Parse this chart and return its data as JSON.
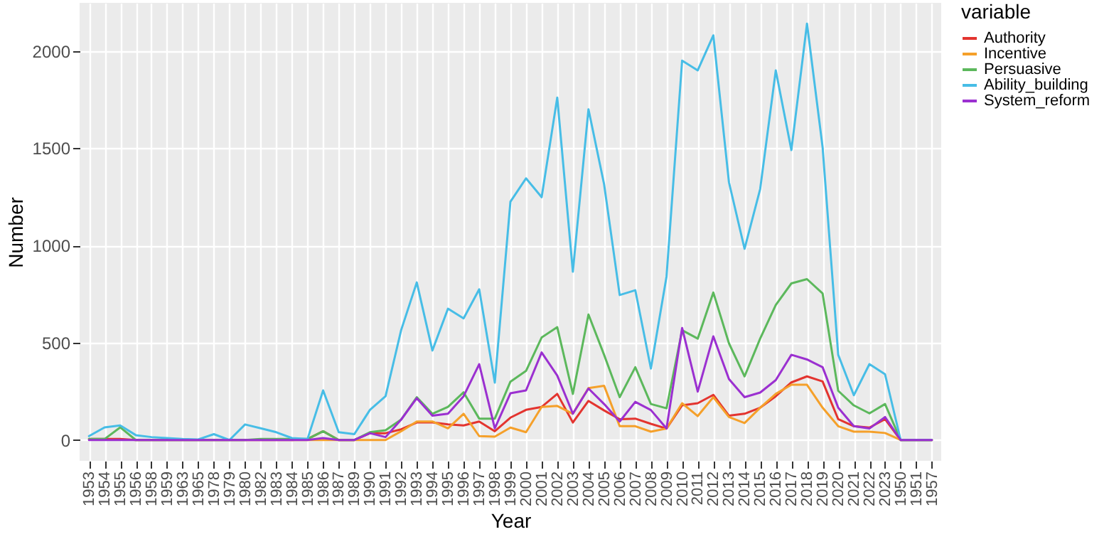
{
  "chart_data": {
    "type": "line",
    "xlabel": "Year",
    "ylabel": "Number",
    "legend_title": "variable",
    "legend": "right",
    "grid": true,
    "categories": [
      "1953",
      "1954",
      "1955",
      "1956",
      "1958",
      "1959",
      "1963",
      "1965",
      "1978",
      "1979",
      "1980",
      "1982",
      "1983",
      "1984",
      "1985",
      "1986",
      "1987",
      "1989",
      "1990",
      "1991",
      "1992",
      "1993",
      "1994",
      "1995",
      "1996",
      "1997",
      "1998",
      "1999",
      "2000",
      "2001",
      "2002",
      "2003",
      "2004",
      "2005",
      "2006",
      "2007",
      "2008",
      "2009",
      "2010",
      "2011",
      "2012",
      "2013",
      "2014",
      "2015",
      "2016",
      "2017",
      "2018",
      "2019",
      "2020",
      "2021",
      "2022",
      "2023",
      "1950",
      "1951",
      "1957"
    ],
    "ylim": [
      -107,
      2247
    ],
    "yticks": [
      0,
      500,
      1000,
      1500,
      2000
    ],
    "series": [
      {
        "name": "Authority",
        "color": "#e3342f",
        "values": [
          5,
          5,
          5,
          0,
          0,
          0,
          0,
          0,
          0,
          0,
          0,
          0,
          0,
          0,
          5,
          45,
          0,
          0,
          35,
          35,
          55,
          90,
          90,
          80,
          75,
          95,
          45,
          115,
          155,
          170,
          237,
          90,
          201,
          152,
          107,
          110,
          83,
          59,
          178,
          189,
          232,
          125,
          135,
          166,
          225,
          296,
          327,
          301,
          107,
          71,
          64,
          107,
          0,
          0,
          0
        ]
      },
      {
        "name": "Incentive",
        "color": "#f5a02a",
        "values": [
          null,
          null,
          null,
          null,
          null,
          null,
          null,
          null,
          null,
          null,
          null,
          null,
          null,
          0,
          0,
          0,
          0,
          0,
          0,
          0,
          45,
          95,
          95,
          60,
          135,
          20,
          17,
          64,
          40,
          170,
          175,
          135,
          267,
          279,
          71,
          71,
          43,
          59,
          189,
          123,
          220,
          118,
          87,
          166,
          237,
          284,
          284,
          166,
          71,
          43,
          43,
          36,
          0,
          0,
          0
        ]
      },
      {
        "name": "Persuasive",
        "color": "#5cb85c",
        "values": [
          5,
          5,
          65,
          0,
          0,
          0,
          0,
          0,
          0,
          0,
          0,
          5,
          5,
          5,
          5,
          45,
          0,
          0,
          40,
          50,
          105,
          220,
          135,
          170,
          245,
          110,
          110,
          300,
          355,
          527,
          580,
          237,
          645,
          438,
          220,
          374,
          185,
          163,
          564,
          521,
          758,
          497,
          327,
          521,
          694,
          805,
          827,
          753,
          253,
          178,
          137,
          185,
          0,
          0,
          0
        ]
      },
      {
        "name": "Ability_building",
        "color": "#47bde6",
        "values": [
          20,
          65,
          75,
          25,
          15,
          10,
          5,
          3,
          30,
          0,
          80,
          60,
          40,
          10,
          5,
          255,
          40,
          30,
          155,
          225,
          565,
          810,
          460,
          675,
          625,
          775,
          295,
          1225,
          1345,
          1248,
          1760,
          865,
          1700,
          1315,
          745,
          770,
          367,
          840,
          1950,
          1900,
          2080,
          1325,
          983,
          1290,
          1900,
          1490,
          2140,
          1505,
          438,
          230,
          390,
          338,
          0,
          0,
          0
        ]
      },
      {
        "name": "System_reform",
        "color": "#9b30d0",
        "values": [
          0,
          0,
          0,
          0,
          0,
          0,
          0,
          0,
          0,
          0,
          0,
          0,
          0,
          0,
          0,
          10,
          0,
          0,
          35,
          15,
          105,
          215,
          125,
          135,
          225,
          390,
          60,
          240,
          255,
          450,
          331,
          135,
          265,
          185,
          95,
          196,
          154,
          59,
          576,
          249,
          533,
          313,
          220,
          244,
          308,
          438,
          414,
          374,
          166,
          71,
          59,
          118,
          0,
          0,
          0
        ]
      }
    ]
  }
}
